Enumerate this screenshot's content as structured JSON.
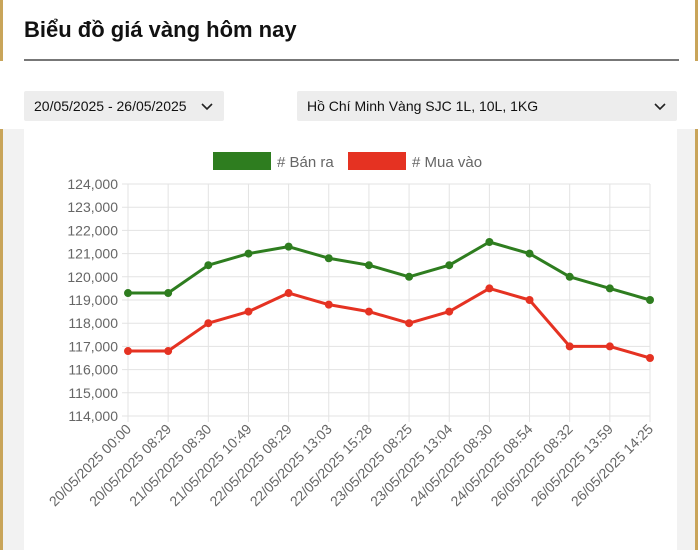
{
  "page": {
    "title": "Biểu đồ giá vàng hôm nay"
  },
  "filters": {
    "date_range": "20/05/2025 - 26/05/2025",
    "location": "Hồ Chí Minh Vàng SJC 1L, 10L, 1KG"
  },
  "icons": {
    "dropdown": "chevron-down-icon"
  },
  "colors": {
    "sell": "#2e7d1f",
    "buy": "#e53222",
    "accent": "#c9a55a"
  },
  "chart_data": {
    "type": "line",
    "categories": [
      "20/05/2025 00:00",
      "20/05/2025 08:29",
      "21/05/2025 08:30",
      "21/05/2025 10:49",
      "22/05/2025 08:29",
      "22/05/2025 13:03",
      "22/05/2025 15:28",
      "23/05/2025 08:25",
      "23/05/2025 13:04",
      "24/05/2025 08:30",
      "24/05/2025 08:54",
      "26/05/2025 08:32",
      "26/05/2025 13:59",
      "26/05/2025 14:25"
    ],
    "series": [
      {
        "name": "# Bán ra",
        "color": "#2e7d1f",
        "values": [
          119300,
          119300,
          120500,
          121000,
          121300,
          120800,
          120500,
          120000,
          120500,
          121500,
          121000,
          120000,
          119500,
          119000
        ]
      },
      {
        "name": "# Mua vào",
        "color": "#e53222",
        "values": [
          116800,
          116800,
          118000,
          118500,
          119300,
          118800,
          118500,
          118000,
          118500,
          119500,
          119000,
          117000,
          117000,
          116500
        ]
      }
    ],
    "yticks": [
      "124,000",
      "123,000",
      "122,000",
      "121,000",
      "120,000",
      "119,000",
      "118,000",
      "117,000",
      "116,000",
      "115,000",
      "114,000"
    ],
    "ylim": [
      114000,
      124000
    ],
    "legend": "top-center",
    "grid": true
  }
}
